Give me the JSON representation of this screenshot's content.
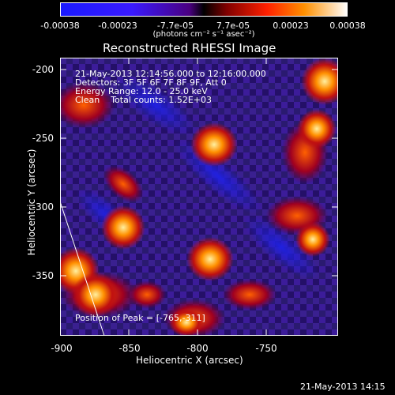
{
  "colorbar": {
    "ticks": [
      "-0.00038",
      "-0.00023",
      "-7.7e-05",
      "7.7e-05",
      "0.00023",
      "0.00038"
    ],
    "units": "(photons cm⁻² s⁻¹ asec⁻²)"
  },
  "title": "Reconstructed RHESSI Image",
  "info": {
    "time": "21-May-2013 12:14:56.000 to 12:16:00.000",
    "detectors": "Detectors: 3F 5F 6F 7F 8F 9F, Att 0",
    "energy": "Energy Range: 12.0 - 25.0 keV",
    "clean": "Clean    Total counts: 1.52E+03"
  },
  "peak": "Position of Peak = [-765,-311]",
  "axes": {
    "xlabel": "Heliocentric X (arcsec)",
    "ylabel": "Heliocentric Y (arcsec)",
    "xticks": [
      "-900",
      "-850",
      "-800",
      "-750"
    ],
    "yticks": [
      "-200",
      "-250",
      "-300",
      "-350"
    ]
  },
  "footer": "21-May-2013 14:15"
}
